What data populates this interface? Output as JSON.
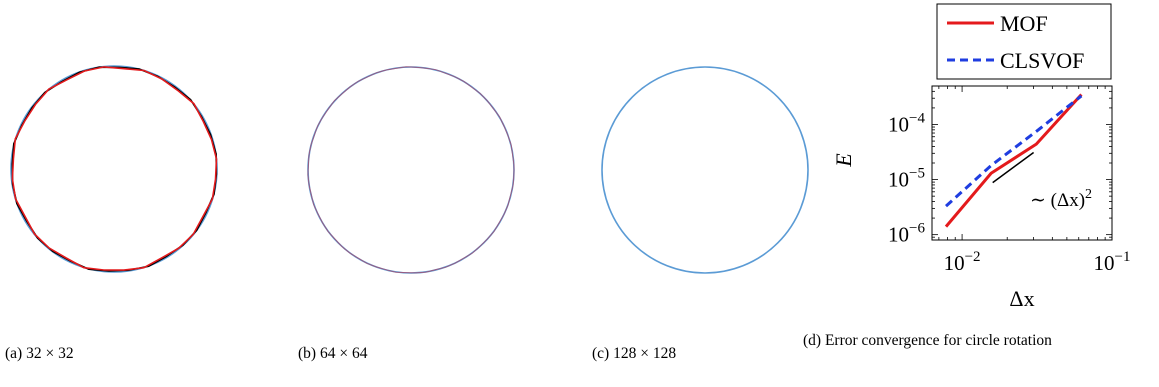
{
  "figure": {
    "subfigures": [
      {
        "id": "a",
        "caption": "(a) 32 × 32",
        "colors": [
          "#000000",
          "#e41a1c",
          "#5b9bd5"
        ]
      },
      {
        "id": "b",
        "caption": "(b) 64 × 64",
        "colors": [
          "#000000",
          "#e41a1c",
          "#5b9bd5"
        ]
      },
      {
        "id": "c",
        "caption": "(c) 128 × 128",
        "colors": [
          "#5b9bd5"
        ]
      },
      {
        "id": "d",
        "caption": "(d) Error convergence for circle rotation"
      }
    ]
  },
  "chart_data": {
    "type": "line",
    "xscale": "log",
    "yscale": "log",
    "xlabel": "Δx",
    "ylabel": "E",
    "xlim": [
      0.0063,
      0.1
    ],
    "ylim": [
      8e-07,
      0.0005
    ],
    "x_tick_labels": [
      "10^-2",
      "10^-1"
    ],
    "y_tick_labels": [
      "10^-6",
      "10^-5",
      "10^-4"
    ],
    "grid": false,
    "legend_position": "above plot",
    "series": [
      {
        "name": "MOF",
        "color": "#e41a1c",
        "style": "solid",
        "x": [
          0.0078125,
          0.015625,
          0.03125,
          0.0625
        ],
        "y": [
          1.4e-06,
          1.3e-05,
          4.4e-05,
          0.00035
        ]
      },
      {
        "name": "CLSVOF",
        "color": "#1f3de0",
        "style": "dashed",
        "x": [
          0.0078125,
          0.015625,
          0.03125,
          0.0625
        ],
        "y": [
          3.3e-06,
          1.8e-05,
          7.5e-05,
          0.00033
        ]
      }
    ],
    "reference_line": {
      "label": "∼ (Δx)^2",
      "slope": 2,
      "x": [
        0.016,
        0.03
      ],
      "y": [
        8.8e-06,
        3.1e-05
      ],
      "color": "#000000"
    }
  }
}
